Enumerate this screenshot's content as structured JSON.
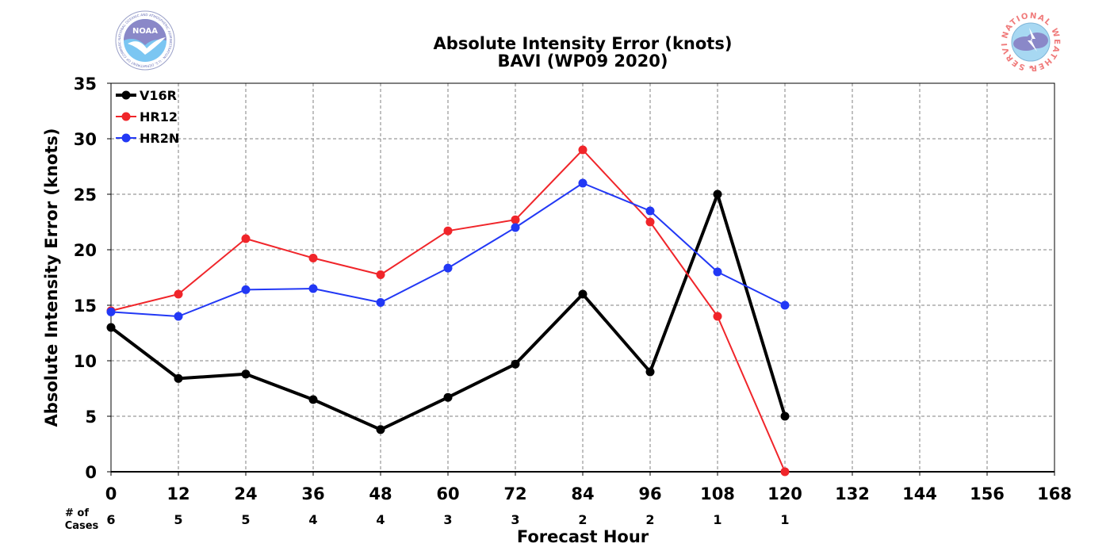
{
  "chart_data": {
    "type": "line",
    "title": "Absolute Intensity Error (knots)",
    "subtitle": "BAVI (WP09 2020)",
    "xlabel": "Forecast Hour",
    "ylabel": "Absolute Intensity Error (knots)",
    "xlim": [
      0,
      168
    ],
    "ylim": [
      0,
      35
    ],
    "x_ticks": [
      0,
      12,
      24,
      36,
      48,
      60,
      72,
      84,
      96,
      108,
      120,
      132,
      144,
      156,
      168
    ],
    "y_ticks": [
      0,
      5,
      10,
      15,
      20,
      25,
      30,
      35
    ],
    "grid": true,
    "legend_position": "top-left",
    "cases_label_line1": "# of",
    "cases_label_line2": "Cases",
    "cases": [
      {
        "x": 0,
        "n": "6"
      },
      {
        "x": 12,
        "n": "5"
      },
      {
        "x": 24,
        "n": "5"
      },
      {
        "x": 36,
        "n": "4"
      },
      {
        "x": 48,
        "n": "4"
      },
      {
        "x": 60,
        "n": "3"
      },
      {
        "x": 72,
        "n": "3"
      },
      {
        "x": 84,
        "n": "2"
      },
      {
        "x": 96,
        "n": "2"
      },
      {
        "x": 108,
        "n": "1"
      },
      {
        "x": 120,
        "n": "1"
      }
    ],
    "series": [
      {
        "name": "V16R",
        "color": "#000000",
        "line_weight": "heavy",
        "x": [
          0,
          12,
          24,
          36,
          48,
          60,
          72,
          84,
          96,
          108,
          120
        ],
        "values": [
          13.0,
          8.4,
          8.8,
          6.5,
          3.8,
          6.7,
          9.7,
          16.0,
          9.0,
          25.0,
          5.0
        ]
      },
      {
        "name": "HR12",
        "color": "#f0252a",
        "line_weight": "normal",
        "x": [
          0,
          12,
          24,
          36,
          48,
          60,
          72,
          84,
          96,
          108,
          120
        ],
        "values": [
          14.5,
          16.0,
          21.0,
          19.25,
          17.75,
          21.7,
          22.7,
          29.0,
          22.5,
          14.0,
          0.0
        ]
      },
      {
        "name": "HR2N",
        "color": "#2238f5",
        "line_weight": "normal",
        "x": [
          0,
          12,
          24,
          36,
          48,
          60,
          72,
          84,
          96,
          108,
          120
        ],
        "values": [
          14.4,
          14.0,
          16.4,
          16.5,
          15.25,
          18.35,
          22.0,
          26.0,
          23.5,
          18.0,
          15.0
        ]
      }
    ]
  },
  "logos": {
    "left": {
      "name": "NOAA",
      "text": "NOAA",
      "ring_text": "NATIONAL OCEANIC AND ATMOSPHERIC ADMINISTRATION · U.S. DEPARTMENT OF COMMERCE"
    },
    "right": {
      "name": "National Weather Service",
      "ring_text": "NATIONAL WEATHER SERVICE"
    }
  }
}
